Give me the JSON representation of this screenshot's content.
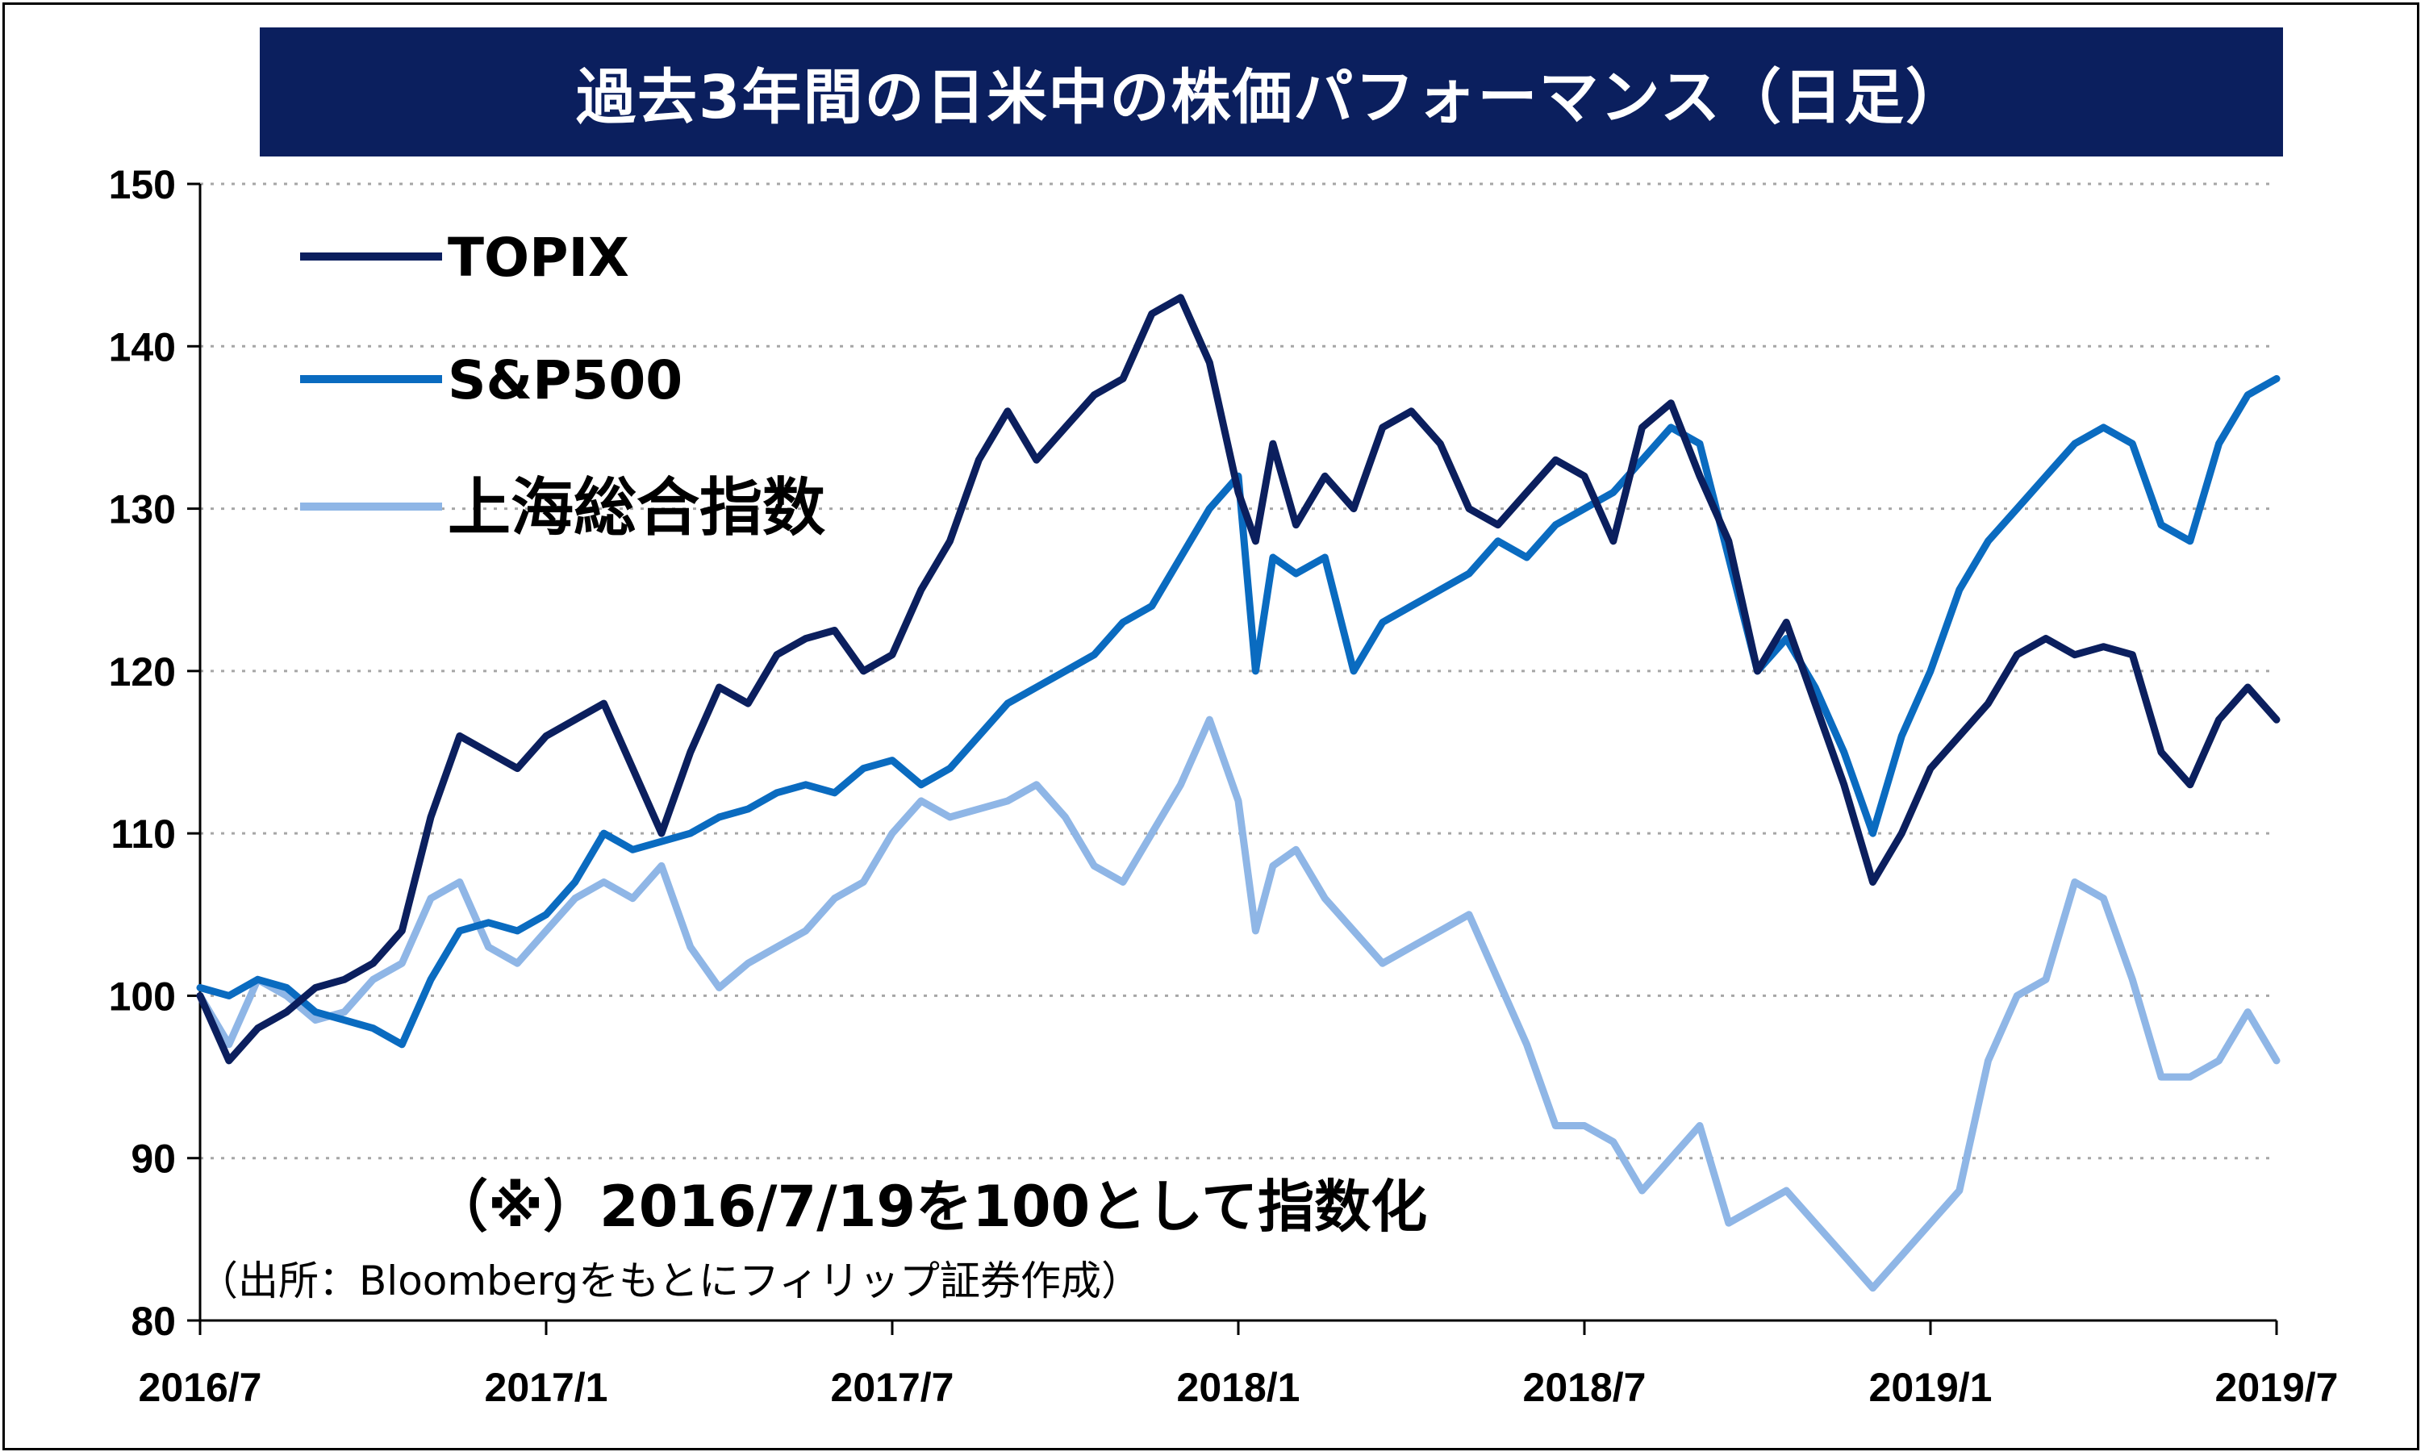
{
  "title": "過去3年間の日米中の株価パフォーマンス（日足）",
  "note": "（※）2016/7/19を100として指数化",
  "source": "（出所：Bloombergをもとにフィリップ証券作成）",
  "colors": {
    "title_bg": "#0b1f5e",
    "topix": "#0b1f5e",
    "sp500": "#0a6bc0",
    "shanghai": "#8fb6e6",
    "grid": "#a6a6a6"
  },
  "chart_data": {
    "type": "line",
    "title": "過去3年間の日米中の株価パフォーマンス（日足）",
    "xlabel": "",
    "ylabel": "",
    "ylim": [
      80,
      150
    ],
    "yticks": [
      80,
      90,
      100,
      110,
      120,
      130,
      140,
      150
    ],
    "xlim": [
      0,
      36
    ],
    "xticks": [
      {
        "pos": 0,
        "label": "2016/7"
      },
      {
        "pos": 6,
        "label": "2017/1"
      },
      {
        "pos": 12,
        "label": "2017/7"
      },
      {
        "pos": 18,
        "label": "2018/1"
      },
      {
        "pos": 24,
        "label": "2018/7"
      },
      {
        "pos": 30,
        "label": "2019/1"
      },
      {
        "pos": 36,
        "label": "2019/7"
      }
    ],
    "grid": true,
    "legend_position": "top-left",
    "series": [
      {
        "name": "TOPIX",
        "x": [
          0,
          0.5,
          1,
          1.5,
          2,
          2.5,
          3,
          3.5,
          4,
          4.5,
          5,
          5.5,
          6,
          6.5,
          7,
          7.5,
          8,
          8.5,
          9,
          9.5,
          10,
          10.5,
          11,
          11.5,
          12,
          12.5,
          13,
          13.5,
          14,
          14.5,
          15,
          15.5,
          16,
          16.5,
          17,
          17.5,
          18,
          18.3,
          18.6,
          19,
          19.5,
          20,
          20.5,
          21,
          21.5,
          22,
          22.5,
          23,
          23.5,
          24,
          24.5,
          25,
          25.5,
          26,
          26.5,
          27,
          27.5,
          28,
          28.5,
          29,
          29.5,
          30,
          30.5,
          31,
          31.5,
          32,
          32.5,
          33,
          33.5,
          34,
          34.5,
          35,
          35.5,
          36
        ],
        "values": [
          100,
          96,
          98,
          99,
          100.5,
          101,
          102,
          104,
          111,
          116,
          115,
          114,
          116,
          117,
          118,
          114,
          110,
          115,
          119,
          118,
          121,
          122,
          122.5,
          120,
          121,
          125,
          128,
          133,
          136,
          133,
          135,
          137,
          138,
          142,
          143,
          139,
          131,
          128,
          134,
          129,
          132,
          130,
          135,
          136,
          134,
          130,
          129,
          131,
          133,
          132,
          128,
          135,
          136.5,
          132,
          128,
          120,
          123,
          118,
          113,
          107,
          110,
          114,
          116,
          118,
          121,
          122,
          121,
          121.5,
          121,
          115,
          113,
          117,
          119,
          117
        ]
      },
      {
        "name": "S&P500",
        "x": [
          0,
          0.5,
          1,
          1.5,
          2,
          2.5,
          3,
          3.5,
          4,
          4.5,
          5,
          5.5,
          6,
          6.5,
          7,
          7.5,
          8,
          8.5,
          9,
          9.5,
          10,
          10.5,
          11,
          11.5,
          12,
          12.5,
          13,
          13.5,
          14,
          14.5,
          15,
          15.5,
          16,
          16.5,
          17,
          17.5,
          18,
          18.3,
          18.6,
          19,
          19.5,
          20,
          20.5,
          21,
          21.5,
          22,
          22.5,
          23,
          23.5,
          24,
          24.5,
          25,
          25.5,
          26,
          26.5,
          27,
          27.5,
          28,
          28.5,
          29,
          29.5,
          30,
          30.5,
          31,
          31.5,
          32,
          32.5,
          33,
          33.5,
          34,
          34.5,
          35,
          35.5,
          36
        ],
        "values": [
          100.5,
          100,
          101,
          100.5,
          99,
          98.5,
          98,
          97,
          101,
          104,
          104.5,
          104,
          105,
          107,
          110,
          109,
          109.5,
          110,
          111,
          111.5,
          112.5,
          113,
          112.5,
          114,
          114.5,
          113,
          114,
          116,
          118,
          119,
          120,
          121,
          123,
          124,
          127,
          130,
          132,
          120,
          127,
          126,
          127,
          120,
          123,
          124,
          125,
          126,
          128,
          127,
          129,
          130,
          131,
          133,
          135,
          134,
          127,
          120,
          122,
          119,
          115,
          110,
          116,
          120,
          125,
          128,
          130,
          132,
          134,
          135,
          134,
          129,
          128,
          134,
          137,
          138
        ]
      },
      {
        "name": "上海総合指数",
        "x": [
          0,
          0.5,
          1,
          1.5,
          2,
          2.5,
          3,
          3.5,
          4,
          4.5,
          5,
          5.5,
          6,
          6.5,
          7,
          7.5,
          8,
          8.5,
          9,
          9.5,
          10,
          10.5,
          11,
          11.5,
          12,
          12.5,
          13,
          13.5,
          14,
          14.5,
          15,
          15.5,
          16,
          16.5,
          17,
          17.5,
          18,
          18.3,
          18.6,
          19,
          19.5,
          20,
          20.5,
          21,
          21.5,
          22,
          22.5,
          23,
          23.5,
          24,
          24.5,
          25,
          25.5,
          26,
          26.5,
          27,
          27.5,
          28,
          28.5,
          29,
          29.5,
          30,
          30.5,
          31,
          31.5,
          32,
          32.5,
          33,
          33.5,
          34,
          34.5,
          35,
          35.5,
          36
        ],
        "values": [
          100,
          97,
          101,
          100,
          98.5,
          99,
          101,
          102,
          106,
          107,
          103,
          102,
          104,
          106,
          107,
          106,
          108,
          103,
          100.5,
          102,
          103,
          104,
          106,
          107,
          110,
          112,
          111,
          111.5,
          112,
          113,
          111,
          108,
          107,
          110,
          113,
          117,
          112,
          104,
          108,
          109,
          106,
          104,
          102,
          103,
          104,
          105,
          101,
          97,
          92,
          92,
          91,
          88,
          90,
          92,
          86,
          87,
          88,
          86,
          84,
          82,
          84,
          86,
          88,
          96,
          100,
          101,
          107,
          106,
          101,
          95,
          95,
          96,
          99,
          96
        ]
      }
    ]
  }
}
